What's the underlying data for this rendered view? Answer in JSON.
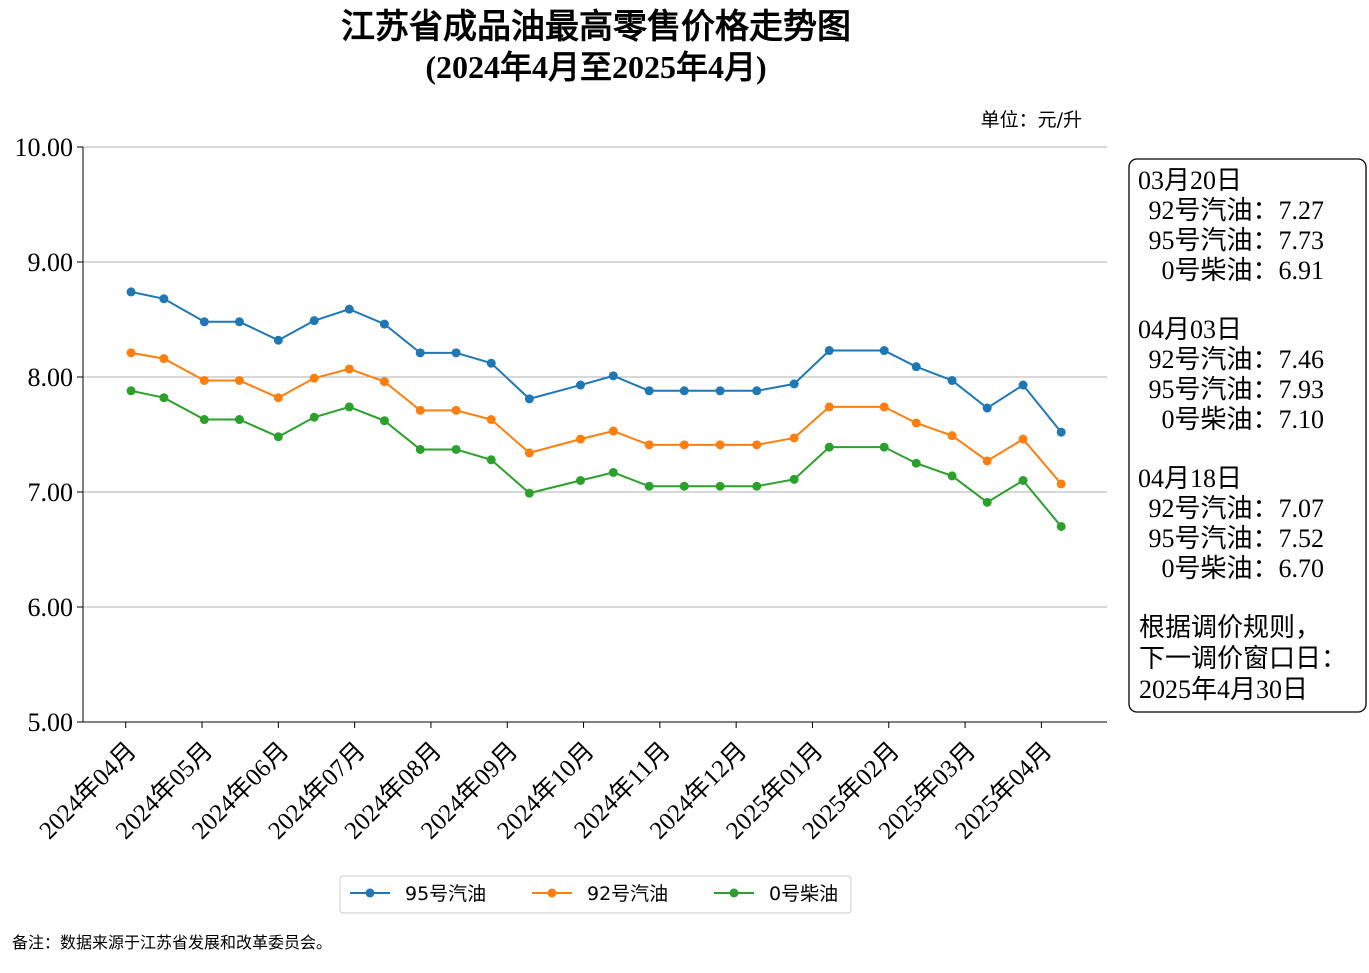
{
  "chart_data": {
    "type": "line",
    "title": "江苏省成品油最高零售价格走势图",
    "subtitle": "(2024年4月至2025年4月)",
    "unit_label": "单位：元/升",
    "footnote": "备注：数据来源于江苏省发展和改革委员会。",
    "x": [
      0.07,
      0.5,
      1.03,
      1.49,
      2.0,
      2.47,
      2.93,
      3.39,
      3.86,
      4.33,
      4.79,
      5.29,
      5.96,
      6.39,
      6.86,
      7.32,
      7.79,
      8.27,
      8.76,
      9.22,
      9.94,
      10.36,
      10.83,
      11.29,
      11.76,
      12.26
    ],
    "xlim": [
      -0.56,
      12.86
    ],
    "xticks": [
      {
        "value": 0,
        "label": "2024年04月"
      },
      {
        "value": 1,
        "label": "2024年05月"
      },
      {
        "value": 2,
        "label": "2024年06月"
      },
      {
        "value": 3,
        "label": "2024年07月"
      },
      {
        "value": 4,
        "label": "2024年08月"
      },
      {
        "value": 5,
        "label": "2024年09月"
      },
      {
        "value": 6,
        "label": "2024年10月"
      },
      {
        "value": 7,
        "label": "2024年11月"
      },
      {
        "value": 8,
        "label": "2024年12月"
      },
      {
        "value": 9,
        "label": "2025年01月"
      },
      {
        "value": 10,
        "label": "2025年02月"
      },
      {
        "value": 11,
        "label": "2025年03月"
      },
      {
        "value": 12,
        "label": "2025年04月"
      }
    ],
    "ylim": [
      5,
      10
    ],
    "yticks": [
      {
        "value": 5,
        "label": "5.00"
      },
      {
        "value": 6,
        "label": "6.00"
      },
      {
        "value": 7,
        "label": "7.00"
      },
      {
        "value": 8,
        "label": "8.00"
      },
      {
        "value": 9,
        "label": "9.00"
      },
      {
        "value": 10,
        "label": "10.00"
      }
    ],
    "grid": true,
    "legend": "bottom",
    "series": [
      {
        "name": "95号汽油",
        "color": "#1f77b4",
        "values": [
          8.74,
          8.68,
          8.48,
          8.48,
          8.32,
          8.49,
          8.59,
          8.46,
          8.21,
          8.21,
          8.12,
          7.81,
          7.93,
          8.01,
          7.88,
          7.88,
          7.88,
          7.88,
          7.94,
          8.23,
          8.23,
          8.09,
          7.97,
          7.73,
          7.93,
          7.52
        ]
      },
      {
        "name": "92号汽油",
        "color": "#ff7f0e",
        "values": [
          8.21,
          8.16,
          7.97,
          7.97,
          7.82,
          7.99,
          8.07,
          7.96,
          7.71,
          7.71,
          7.63,
          7.34,
          7.46,
          7.53,
          7.41,
          7.41,
          7.41,
          7.41,
          7.47,
          7.74,
          7.74,
          7.6,
          7.49,
          7.27,
          7.46,
          7.07
        ]
      },
      {
        "name": "0号柴油",
        "color": "#2ca02c",
        "values": [
          7.88,
          7.82,
          7.63,
          7.63,
          7.48,
          7.65,
          7.74,
          7.62,
          7.37,
          7.37,
          7.28,
          6.99,
          7.1,
          7.17,
          7.05,
          7.05,
          7.05,
          7.05,
          7.11,
          7.39,
          7.39,
          7.25,
          7.14,
          6.91,
          7.1,
          6.7
        ]
      }
    ],
    "info_box": [
      {
        "date": "03月20日",
        "lines": [
          "92号汽油：7.27",
          "95号汽油：7.73",
          "0号柴油：6.91"
        ]
      },
      {
        "date": "04月03日",
        "lines": [
          "92号汽油：7.46",
          "95号汽油：7.93",
          "0号柴油：7.10"
        ]
      },
      {
        "date": "04月18日",
        "lines": [
          "92号汽油：7.07",
          "95号汽油：7.52",
          "0号柴油：6.70"
        ]
      }
    ],
    "info_note": [
      "根据调价规则，",
      "下一调价窗口日：",
      "2025年4月30日"
    ]
  }
}
